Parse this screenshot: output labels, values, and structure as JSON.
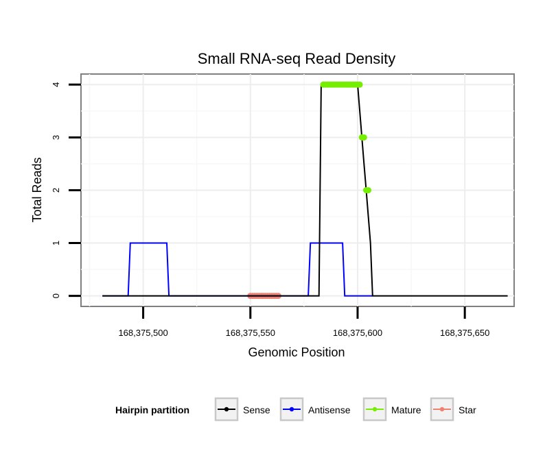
{
  "chart_data": {
    "type": "line",
    "title": "Small RNA-seq Read Density",
    "xlabel": "Genomic Position",
    "ylabel": "Total Reads",
    "xlim": [
      168375471,
      168375673
    ],
    "ylim": [
      -0.2,
      4.2
    ],
    "x_ticks": [
      {
        "value": 168375500,
        "label": "168,375,500"
      },
      {
        "value": 168375550,
        "label": "168,375,550"
      },
      {
        "value": 168375600,
        "label": "168,375,600"
      },
      {
        "value": 168375650,
        "label": "168,375,650"
      }
    ],
    "y_ticks": [
      {
        "value": 0,
        "label": "0"
      },
      {
        "value": 1,
        "label": "1"
      },
      {
        "value": 2,
        "label": "2"
      },
      {
        "value": 3,
        "label": "3"
      },
      {
        "value": 4,
        "label": "4"
      }
    ],
    "grid": true,
    "legend": {
      "title": "Hairpin partition",
      "position": "bottom",
      "entries": [
        {
          "name": "Sense",
          "color": "#000000"
        },
        {
          "name": "Antisense",
          "color": "#0000ff"
        },
        {
          "name": "Mature",
          "color": "#76ee00"
        },
        {
          "name": "Star",
          "color": "#f08070"
        }
      ]
    },
    "series": [
      {
        "name": "Sense",
        "color": "#000000",
        "style": "line",
        "x": [
          168375481,
          168375582,
          168375583,
          168375584,
          168375600,
          168375601,
          168375602,
          168375603,
          168375604,
          168375605,
          168375606,
          168375607,
          168375670
        ],
        "y": [
          0,
          0,
          4,
          4,
          4,
          3.5,
          3,
          2.5,
          2,
          1.5,
          1,
          0,
          0
        ]
      },
      {
        "name": "Antisense",
        "color": "#0000ff",
        "style": "line",
        "x": [
          168375481,
          168375493,
          168375494,
          168375511,
          168375512,
          168375577,
          168375578,
          168375593,
          168375594,
          168375607
        ],
        "y": [
          0,
          0,
          1,
          1,
          0,
          0,
          1,
          1,
          0,
          0
        ]
      },
      {
        "name": "Mature",
        "color": "#76ee00",
        "style": "points",
        "x": [
          168375584,
          168375585,
          168375586,
          168375587,
          168375588,
          168375589,
          168375590,
          168375591,
          168375592,
          168375593,
          168375594,
          168375595,
          168375596,
          168375597,
          168375598,
          168375599,
          168375600,
          168375601,
          168375602,
          168375603,
          168375604,
          168375605
        ],
        "y": [
          4,
          4,
          4,
          4,
          4,
          4,
          4,
          4,
          4,
          4,
          4,
          4,
          4,
          4,
          4,
          4,
          4,
          4,
          3,
          3,
          2,
          2
        ]
      },
      {
        "name": "Star",
        "color": "#f08070",
        "style": "points",
        "x": [
          168375550,
          168375551,
          168375552,
          168375553,
          168375554,
          168375555,
          168375556,
          168375557,
          168375558,
          168375559,
          168375560,
          168375561,
          168375562,
          168375563
        ],
        "y": [
          0,
          0,
          0,
          0,
          0,
          0,
          0,
          0,
          0,
          0,
          0,
          0,
          0,
          0
        ]
      }
    ]
  }
}
